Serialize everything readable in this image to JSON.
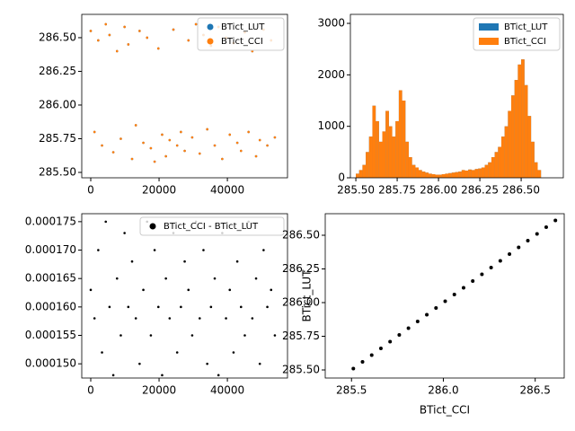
{
  "chart_data": [
    {
      "type": "scatter",
      "legend": "upper right",
      "x": [
        0,
        1100,
        2200,
        3300,
        4400,
        5500,
        6600,
        7700,
        8800,
        9900,
        11000,
        12100,
        13200,
        14300,
        15400,
        16500,
        17600,
        18700,
        19800,
        20900,
        22000,
        23100,
        24200,
        25300,
        26400,
        27500,
        28600,
        29700,
        30800,
        31900,
        33000,
        34100,
        35200,
        36300,
        37400,
        38500,
        39600,
        40700,
        41800,
        42900,
        44000,
        45100,
        46200,
        47300,
        48400,
        49500,
        50600,
        51700,
        52800,
        53900
      ],
      "series": [
        {
          "name": "BTict_LUT",
          "color": "#1f77b4",
          "values": [
            286.55,
            285.8,
            286.48,
            285.7,
            286.6,
            286.52,
            285.65,
            286.4,
            285.75,
            286.58,
            286.45,
            285.6,
            285.85,
            286.55,
            285.72,
            286.5,
            285.68,
            285.58,
            286.42,
            285.78,
            285.62,
            285.74,
            286.56,
            285.7,
            285.8,
            285.66,
            286.48,
            285.76,
            286.6,
            285.64,
            286.52,
            285.82,
            286.44,
            285.7,
            286.58,
            285.6,
            286.5,
            285.78,
            286.46,
            285.72,
            285.66,
            286.54,
            285.8,
            286.4,
            285.62,
            285.74,
            286.56,
            285.7,
            286.48,
            285.76
          ]
        },
        {
          "name": "BTict_CCI",
          "color": "#ff7f0e",
          "values": [
            286.55,
            285.8,
            286.48,
            285.7,
            286.6,
            286.52,
            285.65,
            286.4,
            285.75,
            286.58,
            286.45,
            285.6,
            285.85,
            286.55,
            285.72,
            286.5,
            285.68,
            285.58,
            286.42,
            285.78,
            285.62,
            285.74,
            286.56,
            285.7,
            285.8,
            285.66,
            286.48,
            285.76,
            286.6,
            285.64,
            286.52,
            285.82,
            286.44,
            285.7,
            286.58,
            285.6,
            286.5,
            285.78,
            286.46,
            285.72,
            285.66,
            286.54,
            285.8,
            286.4,
            285.62,
            285.74,
            286.56,
            285.7,
            286.48,
            285.76
          ]
        }
      ],
      "xlim": [
        -2630,
        57600
      ],
      "xticks": [
        0,
        20000,
        40000
      ],
      "ylim": [
        285.46,
        286.673
      ],
      "yticks": [
        {
          "value": 285.5,
          "label": "285.50"
        },
        {
          "value": 285.75,
          "label": "285.75"
        },
        {
          "value": 286.0,
          "label": "286.00"
        },
        {
          "value": 286.25,
          "label": "286.25"
        },
        {
          "value": 286.5,
          "label": "286.50"
        }
      ]
    },
    {
      "type": "histogram",
      "legend": "upper right",
      "bins": [
        285.5,
        285.52,
        285.54,
        285.56,
        285.58,
        285.6,
        285.62,
        285.64,
        285.66,
        285.68,
        285.7,
        285.72,
        285.74,
        285.76,
        285.78,
        285.8,
        285.82,
        285.84,
        285.86,
        285.88,
        285.9,
        285.92,
        285.94,
        285.96,
        285.98,
        286.0,
        286.02,
        286.04,
        286.06,
        286.08,
        286.1,
        286.12,
        286.14,
        286.16,
        286.18,
        286.2,
        286.22,
        286.24,
        286.26,
        286.28,
        286.3,
        286.32,
        286.34,
        286.36,
        286.38,
        286.4,
        286.42,
        286.44,
        286.46,
        286.48,
        286.5,
        286.52,
        286.54,
        286.56,
        286.58,
        286.6,
        286.62
      ],
      "series": [
        {
          "name": "BTict_LUT",
          "color": "#1f77b4",
          "values": [
            80,
            150,
            250,
            500,
            800,
            1400,
            1100,
            700,
            900,
            1300,
            1000,
            800,
            1100,
            1700,
            1500,
            700,
            400,
            250,
            200,
            150,
            120,
            100,
            80,
            70,
            60,
            60,
            70,
            80,
            90,
            100,
            110,
            120,
            150,
            140,
            160,
            150,
            170,
            180,
            200,
            250,
            300,
            400,
            500,
            600,
            800,
            1000,
            1300,
            1600,
            1900,
            2200,
            2300,
            1800,
            1200,
            700,
            300,
            150
          ]
        },
        {
          "name": "BTict_CCI",
          "color": "#ff7f0e",
          "values": [
            80,
            150,
            250,
            500,
            800,
            1400,
            1100,
            700,
            900,
            1300,
            1000,
            800,
            1100,
            1700,
            1500,
            700,
            400,
            250,
            200,
            150,
            120,
            100,
            80,
            70,
            60,
            60,
            70,
            80,
            90,
            100,
            110,
            120,
            150,
            140,
            160,
            150,
            170,
            180,
            200,
            250,
            300,
            400,
            500,
            600,
            800,
            1000,
            1300,
            1600,
            1900,
            2200,
            2300,
            1800,
            1200,
            700,
            300,
            150
          ]
        }
      ],
      "xlim": [
        285.467,
        286.755
      ],
      "xticks": [
        {
          "value": 285.5,
          "label": "285.50"
        },
        {
          "value": 285.75,
          "label": "285.75"
        },
        {
          "value": 286.0,
          "label": "286.00"
        },
        {
          "value": 286.25,
          "label": "286.25"
        },
        {
          "value": 286.5,
          "label": "286.50"
        }
      ],
      "ylim": [
        0,
        3175
      ],
      "yticks": [
        0,
        1000,
        2000,
        3000
      ]
    },
    {
      "type": "scatter",
      "legend": "upper right",
      "x": [
        0,
        1100,
        2200,
        3300,
        4400,
        5500,
        6600,
        7700,
        8800,
        9900,
        11000,
        12100,
        13200,
        14300,
        15400,
        16500,
        17600,
        18700,
        19800,
        20900,
        22000,
        23100,
        24200,
        25300,
        26400,
        27500,
        28600,
        29700,
        30800,
        31900,
        33000,
        34100,
        35200,
        36300,
        37400,
        38500,
        39600,
        40700,
        41800,
        42900,
        44000,
        45100,
        46200,
        47300,
        48400,
        49500,
        50600,
        51700,
        52800,
        53900
      ],
      "series": [
        {
          "name": "BTict_CCI - BTict_LUT",
          "color": "#000000",
          "values": [
            0.000163,
            0.000158,
            0.00017,
            0.000152,
            0.000175,
            0.00016,
            0.000148,
            0.000165,
            0.000155,
            0.000173,
            0.00016,
            0.000168,
            0.000158,
            0.00015,
            0.000163,
            0.000175,
            0.000155,
            0.00017,
            0.00016,
            0.000148,
            0.000165,
            0.000158,
            0.000173,
            0.000152,
            0.00016,
            0.000168,
            0.000163,
            0.000155,
            0.000175,
            0.000158,
            0.00017,
            0.00015,
            0.00016,
            0.000165,
            0.000148,
            0.000173,
            0.000158,
            0.000163,
            0.000152,
            0.000168,
            0.00016,
            0.000155,
            0.000175,
            0.000158,
            0.000165,
            0.00015,
            0.00017,
            0.00016,
            0.000163,
            0.000155
          ]
        }
      ],
      "xlim": [
        -2630,
        57600
      ],
      "xticks": [
        0,
        20000,
        40000
      ],
      "ylim": [
        0.0001475,
        0.0001764
      ],
      "yticks": [
        {
          "value": 0.00015,
          "label": "0.000150"
        },
        {
          "value": 0.000155,
          "label": "0.000155"
        },
        {
          "value": 0.00016,
          "label": "0.000160"
        },
        {
          "value": 0.000165,
          "label": "0.000165"
        },
        {
          "value": 0.00017,
          "label": "0.000170"
        },
        {
          "value": 0.000175,
          "label": "0.000175"
        }
      ]
    },
    {
      "type": "scatter",
      "xlabel": "BTict_CCI",
      "ylabel": "BTict_LUT",
      "x": [
        285.51,
        285.56,
        285.61,
        285.66,
        285.71,
        285.76,
        285.81,
        285.86,
        285.91,
        285.96,
        286.01,
        286.06,
        286.11,
        286.16,
        286.21,
        286.26,
        286.31,
        286.36,
        286.41,
        286.46,
        286.51,
        286.56,
        286.61
      ],
      "series": [
        {
          "color": "#000000",
          "values": [
            285.51,
            285.56,
            285.61,
            285.66,
            285.71,
            285.76,
            285.81,
            285.86,
            285.91,
            285.96,
            286.01,
            286.06,
            286.11,
            286.16,
            286.21,
            286.26,
            286.31,
            286.36,
            286.41,
            286.46,
            286.51,
            286.56,
            286.61
          ]
        }
      ],
      "xlim": [
        285.357,
        286.658
      ],
      "xticks": [
        285.5,
        {
          "value": 286.0,
          "label": "286.0"
        },
        286.5
      ],
      "ylim": [
        285.44,
        286.66
      ],
      "yticks": [
        {
          "value": 285.5,
          "label": "285.50"
        },
        {
          "value": 285.75,
          "label": "285.75"
        },
        {
          "value": 286.0,
          "label": "286.00"
        },
        {
          "value": 286.25,
          "label": "286.25"
        },
        {
          "value": 286.5,
          "label": "286.50"
        }
      ]
    }
  ]
}
